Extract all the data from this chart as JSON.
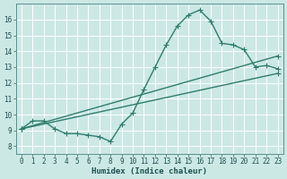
{
  "xlabel": "Humidex (Indice chaleur)",
  "ylabel": "",
  "bg_color": "#cce8e4",
  "grid_color": "#ffffff",
  "line_color": "#2e7d6e",
  "xlim": [
    -0.5,
    23.5
  ],
  "ylim": [
    7.5,
    17.0
  ],
  "xticks": [
    0,
    1,
    2,
    3,
    4,
    5,
    6,
    7,
    8,
    9,
    10,
    11,
    12,
    13,
    14,
    15,
    16,
    17,
    18,
    19,
    20,
    21,
    22,
    23
  ],
  "yticks": [
    8,
    9,
    10,
    11,
    12,
    13,
    14,
    15,
    16
  ],
  "line1_x": [
    0,
    1,
    2,
    3,
    4,
    5,
    6,
    7,
    8,
    9,
    10,
    11,
    12,
    13,
    14,
    15,
    16,
    17,
    18,
    19,
    20,
    21,
    22,
    23
  ],
  "line1_y": [
    9.1,
    9.6,
    9.6,
    9.1,
    8.8,
    8.8,
    8.7,
    8.6,
    8.3,
    9.4,
    10.1,
    11.6,
    13.0,
    14.4,
    15.6,
    16.3,
    16.6,
    15.9,
    14.5,
    14.4,
    14.1,
    13.0,
    13.1,
    12.9
  ],
  "line2_x": [
    0,
    23
  ],
  "line2_y": [
    9.1,
    13.7
  ],
  "line3_x": [
    0,
    23
  ],
  "line3_y": [
    9.1,
    12.6
  ],
  "marker": "+",
  "markersize": 4,
  "linewidth": 1.0,
  "tick_fontsize": 5.5,
  "xlabel_fontsize": 6.5
}
